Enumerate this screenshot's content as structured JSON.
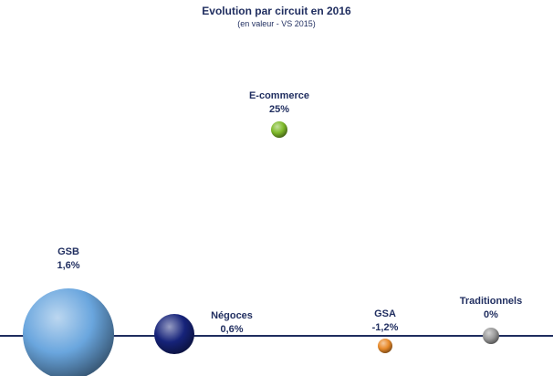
{
  "chart_data": {
    "type": "scatter",
    "title": "Evolution par circuit en 2016",
    "subtitle": "(en valeur - VS 2015)",
    "xlabel": "",
    "ylabel": "",
    "grid": false,
    "series": [
      {
        "name": "E-commerce",
        "value_label": "25%",
        "value": 25,
        "color": "#7fba2a"
      },
      {
        "name": "GSB",
        "value_label": "1,6%",
        "value": 1.6,
        "color": "#6aa6de"
      },
      {
        "name": "Négoces",
        "value_label": "0,6%",
        "value": 0.6,
        "color": "#16237a"
      },
      {
        "name": "GSA",
        "value_label": "-1,2%",
        "value": -1.2,
        "color": "#e88a2a"
      },
      {
        "name": "Traditionnels",
        "value_label": "0%",
        "value": 0,
        "color": "#9a9a9a"
      }
    ]
  }
}
